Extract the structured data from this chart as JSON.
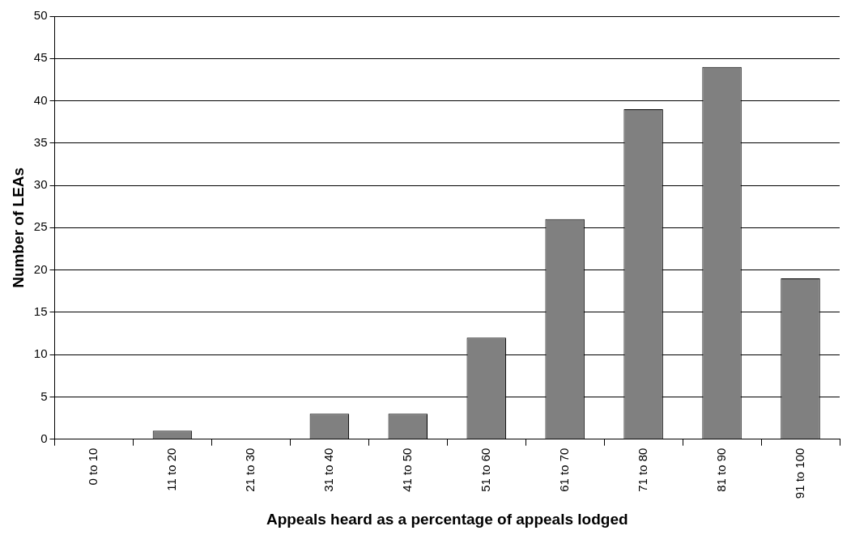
{
  "chart_data": {
    "type": "bar",
    "xlabel": "Appeals heard as a percentage of appeals lodged",
    "ylabel": "Number of LEAs",
    "categories": [
      "0 to 10",
      "11 to 20",
      "21 to 30",
      "31 to 40",
      "41 to 50",
      "51 to 60",
      "61 to 70",
      "71 to 80",
      "81 to 90",
      "91 to 100"
    ],
    "values": [
      0,
      1,
      0,
      3,
      3,
      12,
      26,
      39,
      44,
      19
    ],
    "color": "#808080",
    "ylim": [
      0,
      50
    ],
    "yticks": [
      0,
      5,
      10,
      15,
      20,
      25,
      30,
      35,
      40,
      45,
      50
    ],
    "grid": "y",
    "legend": false
  }
}
